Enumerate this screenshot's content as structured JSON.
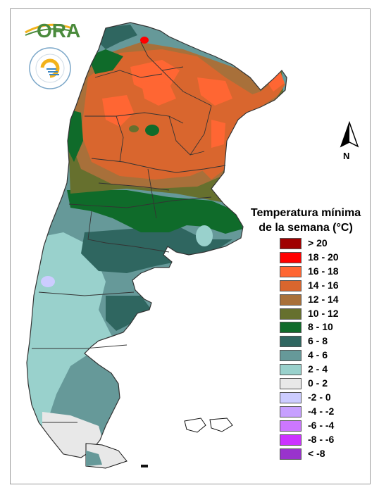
{
  "logo": {
    "text": "ORA"
  },
  "seal": {
    "ring_text": "SERVICIO METEOROLÓGICO NACIONAL",
    "country_text": "ARGENTINA"
  },
  "north_arrow": {
    "label": "N"
  },
  "legend": {
    "title_line1": "Temperatura mínima",
    "title_line2": "de la semana (°C)",
    "classes": [
      {
        "label": "> 20",
        "color": "#a00000"
      },
      {
        "label": "18 - 20",
        "color": "#ff0000"
      },
      {
        "label": "16 - 18",
        "color": "#ff6633"
      },
      {
        "label": "14 - 16",
        "color": "#d9662e"
      },
      {
        "label": "12 - 14",
        "color": "#a8703a"
      },
      {
        "label": "10 - 12",
        "color": "#66702e"
      },
      {
        "label": "8 - 10",
        "color": "#0f6b2a"
      },
      {
        "label": "6 - 8",
        "color": "#2f6660"
      },
      {
        "label": "4 - 6",
        "color": "#669999"
      },
      {
        "label": "2 - 4",
        "color": "#99d1cc"
      },
      {
        "label": "0 - 2",
        "color": "#e8e8e8"
      },
      {
        "label": "-2 - 0",
        "color": "#ccccff"
      },
      {
        "label": "-4 - -2",
        "color": "#c7a0ff"
      },
      {
        "label": "-6 - -4",
        "color": "#cc77ff"
      },
      {
        "label": "-8 - -6",
        "color": "#cc33ff"
      },
      {
        "label": "< -8",
        "color": "#9933cc"
      }
    ]
  }
}
